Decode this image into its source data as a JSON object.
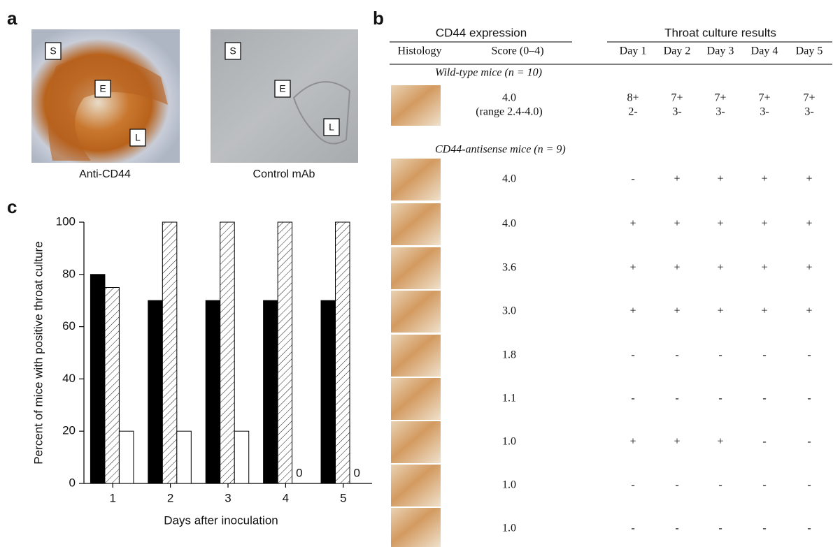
{
  "panel_a": {
    "label": "a",
    "images": [
      {
        "caption": "Anti-CD44",
        "markers": [
          "S",
          "E",
          "L"
        ]
      },
      {
        "caption": "Control mAb",
        "markers": [
          "S",
          "E",
          "L"
        ]
      }
    ]
  },
  "panel_b": {
    "label": "b",
    "header": {
      "group1": "CD44 expression",
      "group2": "Throat culture results",
      "columns": [
        "Histology",
        "Score (0–4)",
        "Day 1",
        "Day 2",
        "Day 3",
        "Day 4",
        "Day 5"
      ]
    },
    "groups": [
      {
        "title": "Wild-type mice (n = 10)",
        "rows": [
          {
            "score": [
              "4.0",
              "(range 2.4-4.0)"
            ],
            "days": [
              [
                "8+",
                "2-"
              ],
              [
                "7+",
                "3-"
              ],
              [
                "7+",
                "3-"
              ],
              [
                "7+",
                "3-"
              ],
              [
                "7+",
                "3-"
              ]
            ]
          }
        ]
      },
      {
        "title": "CD44-antisense mice (n = 9)",
        "rows": [
          {
            "score": [
              "4.0"
            ],
            "days": [
              [
                "-"
              ],
              [
                "+"
              ],
              [
                "+"
              ],
              [
                "+"
              ],
              [
                "+"
              ]
            ]
          },
          {
            "score": [
              "4.0"
            ],
            "days": [
              [
                "+"
              ],
              [
                "+"
              ],
              [
                "+"
              ],
              [
                "+"
              ],
              [
                "+"
              ]
            ]
          },
          {
            "score": [
              "3.6"
            ],
            "days": [
              [
                "+"
              ],
              [
                "+"
              ],
              [
                "+"
              ],
              [
                "+"
              ],
              [
                "+"
              ]
            ]
          },
          {
            "score": [
              "3.0"
            ],
            "days": [
              [
                "+"
              ],
              [
                "+"
              ],
              [
                "+"
              ],
              [
                "+"
              ],
              [
                "+"
              ]
            ]
          },
          {
            "score": [
              "1.8"
            ],
            "days": [
              [
                "-"
              ],
              [
                "-"
              ],
              [
                "-"
              ],
              [
                "-"
              ],
              [
                "-"
              ]
            ]
          },
          {
            "score": [
              "1.1"
            ],
            "days": [
              [
                "-"
              ],
              [
                "-"
              ],
              [
                "-"
              ],
              [
                "-"
              ],
              [
                "-"
              ]
            ]
          },
          {
            "score": [
              "1.0"
            ],
            "days": [
              [
                "+"
              ],
              [
                "+"
              ],
              [
                "+"
              ],
              [
                "-"
              ],
              [
                "-"
              ]
            ]
          },
          {
            "score": [
              "1.0"
            ],
            "days": [
              [
                "-"
              ],
              [
                "-"
              ],
              [
                "-"
              ],
              [
                "-"
              ],
              [
                "-"
              ]
            ]
          },
          {
            "score": [
              "1.0"
            ],
            "days": [
              [
                "-"
              ],
              [
                "-"
              ],
              [
                "-"
              ],
              [
                "-"
              ],
              [
                "-"
              ]
            ]
          }
        ]
      }
    ]
  },
  "chart_data": {
    "type": "bar",
    "label": "c",
    "y_label": "Percent of mice with positive throat culture",
    "x_label": "Days after inoculation",
    "categories": [
      "1",
      "2",
      "3",
      "4",
      "5"
    ],
    "series": [
      {
        "color": "#000000",
        "values": [
          80,
          70,
          70,
          70,
          70
        ]
      },
      {
        "color": "#ffffff",
        "hatch": true,
        "values": [
          75,
          100,
          100,
          100,
          100
        ]
      },
      {
        "color": "#ffffff",
        "values": [
          20,
          20,
          20,
          0,
          0
        ],
        "value_labels": [
          null,
          null,
          null,
          "0",
          "0"
        ]
      }
    ],
    "ylim": [
      0,
      100
    ],
    "yticks": [
      0,
      20,
      40,
      60,
      80,
      100
    ],
    "grid": false
  }
}
